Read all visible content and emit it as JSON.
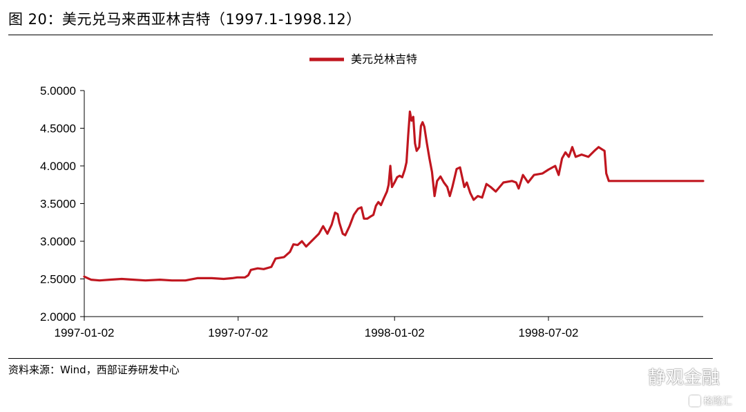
{
  "figure": {
    "title": "图 20：美元兑马来西亚林吉特（1997.1-1998.12）",
    "source": "资料来源：Wind，西部证券研发中心"
  },
  "watermark": {
    "main_text": "静观金融",
    "secondary_text": "格隆汇"
  },
  "chart_data": {
    "type": "line",
    "title": "",
    "xlabel": "",
    "ylabel": "",
    "legend_position": "top-center",
    "grid": false,
    "ylim": [
      2.0,
      5.0
    ],
    "xlim": [
      "1997-01-02",
      "1998-12-31"
    ],
    "yticks": [
      "2.0000",
      "2.5000",
      "3.0000",
      "3.5000",
      "4.0000",
      "4.5000",
      "5.0000"
    ],
    "xticks": [
      "1997-01-02",
      "1997-07-02",
      "1998-01-02",
      "1998-07-02"
    ],
    "series": [
      {
        "name": "美元兑林吉特",
        "color": "#c0161f",
        "points": [
          [
            "1997-01-02",
            2.53
          ],
          [
            "1997-01-10",
            2.49
          ],
          [
            "1997-01-20",
            2.48
          ],
          [
            "1997-02-01",
            2.49
          ],
          [
            "1997-02-15",
            2.5
          ],
          [
            "1997-03-01",
            2.49
          ],
          [
            "1997-03-15",
            2.48
          ],
          [
            "1997-04-01",
            2.49
          ],
          [
            "1997-04-15",
            2.48
          ],
          [
            "1997-05-01",
            2.48
          ],
          [
            "1997-05-15",
            2.51
          ],
          [
            "1997-06-01",
            2.51
          ],
          [
            "1997-06-15",
            2.5
          ],
          [
            "1997-06-25",
            2.51
          ],
          [
            "1997-07-01",
            2.52
          ],
          [
            "1997-07-02",
            2.52
          ],
          [
            "1997-07-10",
            2.52
          ],
          [
            "1997-07-14",
            2.55
          ],
          [
            "1997-07-17",
            2.62
          ],
          [
            "1997-07-25",
            2.64
          ],
          [
            "1997-08-01",
            2.63
          ],
          [
            "1997-08-10",
            2.66
          ],
          [
            "1997-08-15",
            2.77
          ],
          [
            "1997-08-25",
            2.79
          ],
          [
            "1997-09-01",
            2.86
          ],
          [
            "1997-09-05",
            2.96
          ],
          [
            "1997-09-10",
            2.95
          ],
          [
            "1997-09-15",
            3.0
          ],
          [
            "1997-09-20",
            2.93
          ],
          [
            "1997-09-28",
            3.02
          ],
          [
            "1997-10-05",
            3.1
          ],
          [
            "1997-10-10",
            3.2
          ],
          [
            "1997-10-15",
            3.1
          ],
          [
            "1997-10-20",
            3.22
          ],
          [
            "1997-10-24",
            3.38
          ],
          [
            "1997-10-27",
            3.36
          ],
          [
            "1997-10-29",
            3.25
          ],
          [
            "1997-11-02",
            3.1
          ],
          [
            "1997-11-05",
            3.08
          ],
          [
            "1997-11-10",
            3.2
          ],
          [
            "1997-11-15",
            3.35
          ],
          [
            "1997-11-20",
            3.43
          ],
          [
            "1997-11-24",
            3.45
          ],
          [
            "1997-11-27",
            3.3
          ],
          [
            "1997-12-01",
            3.3
          ],
          [
            "1997-12-05",
            3.33
          ],
          [
            "1997-12-08",
            3.35
          ],
          [
            "1997-12-11",
            3.47
          ],
          [
            "1997-12-14",
            3.52
          ],
          [
            "1997-12-17",
            3.48
          ],
          [
            "1997-12-20",
            3.56
          ],
          [
            "1997-12-24",
            3.66
          ],
          [
            "1997-12-26",
            3.75
          ],
          [
            "1997-12-28",
            4.0
          ],
          [
            "1997-12-30",
            3.72
          ],
          [
            "1998-01-02",
            3.78
          ],
          [
            "1998-01-05",
            3.85
          ],
          [
            "1998-01-08",
            3.87
          ],
          [
            "1998-01-11",
            3.85
          ],
          [
            "1998-01-14",
            3.95
          ],
          [
            "1998-01-16",
            4.05
          ],
          [
            "1998-01-18",
            4.4
          ],
          [
            "1998-01-20",
            4.72
          ],
          [
            "1998-01-22",
            4.6
          ],
          [
            "1998-01-24",
            4.65
          ],
          [
            "1998-01-26",
            4.3
          ],
          [
            "1998-01-28",
            4.2
          ],
          [
            "1998-01-31",
            4.25
          ],
          [
            "1998-02-02",
            4.53
          ],
          [
            "1998-02-04",
            4.58
          ],
          [
            "1998-02-06",
            4.52
          ],
          [
            "1998-02-09",
            4.3
          ],
          [
            "1998-02-12",
            4.1
          ],
          [
            "1998-02-15",
            3.92
          ],
          [
            "1998-02-18",
            3.6
          ],
          [
            "1998-02-21",
            3.8
          ],
          [
            "1998-02-25",
            3.86
          ],
          [
            "1998-03-01",
            3.78
          ],
          [
            "1998-03-05",
            3.72
          ],
          [
            "1998-03-08",
            3.6
          ],
          [
            "1998-03-11",
            3.72
          ],
          [
            "1998-03-16",
            3.96
          ],
          [
            "1998-03-20",
            3.98
          ],
          [
            "1998-03-25",
            3.72
          ],
          [
            "1998-03-28",
            3.78
          ],
          [
            "1998-04-01",
            3.64
          ],
          [
            "1998-04-05",
            3.55
          ],
          [
            "1998-04-10",
            3.6
          ],
          [
            "1998-04-15",
            3.58
          ],
          [
            "1998-04-20",
            3.76
          ],
          [
            "1998-04-25",
            3.72
          ],
          [
            "1998-05-01",
            3.66
          ],
          [
            "1998-05-10",
            3.78
          ],
          [
            "1998-05-20",
            3.8
          ],
          [
            "1998-05-25",
            3.78
          ],
          [
            "1998-05-28",
            3.7
          ],
          [
            "1998-06-02",
            3.88
          ],
          [
            "1998-06-08",
            3.78
          ],
          [
            "1998-06-15",
            3.88
          ],
          [
            "1998-06-25",
            3.9
          ],
          [
            "1998-07-02",
            3.95
          ],
          [
            "1998-07-10",
            4.0
          ],
          [
            "1998-07-14",
            3.88
          ],
          [
            "1998-07-18",
            4.1
          ],
          [
            "1998-07-22",
            4.18
          ],
          [
            "1998-07-26",
            4.12
          ],
          [
            "1998-07-30",
            4.25
          ],
          [
            "1998-08-03",
            4.12
          ],
          [
            "1998-08-10",
            4.15
          ],
          [
            "1998-08-18",
            4.12
          ],
          [
            "1998-08-25",
            4.2
          ],
          [
            "1998-08-30",
            4.25
          ],
          [
            "1998-09-03",
            4.22
          ],
          [
            "1998-09-06",
            4.2
          ],
          [
            "1998-09-08",
            3.9
          ],
          [
            "1998-09-11",
            3.8
          ],
          [
            "1998-12-31",
            3.8
          ]
        ]
      }
    ]
  }
}
